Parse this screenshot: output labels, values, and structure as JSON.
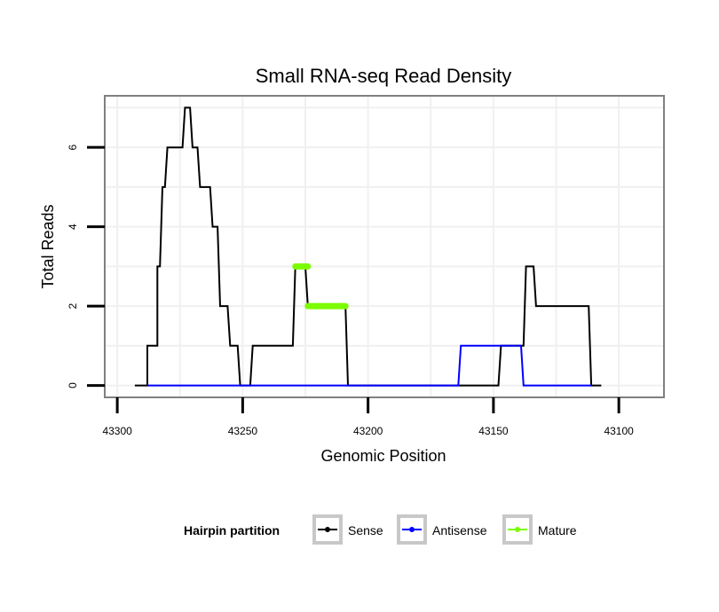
{
  "chart_data": {
    "type": "line",
    "title": "Small RNA-seq Read Density",
    "xlabel": "Genomic Position",
    "ylabel": "Total Reads",
    "xlim": [
      43305,
      43082
    ],
    "ylim": [
      -0.3,
      7.3
    ],
    "x_reversed": true,
    "grid": true,
    "x_ticks": [
      43300,
      43250,
      43200,
      43150,
      43100
    ],
    "y_ticks": [
      0,
      2,
      4,
      6
    ],
    "legend_title": "Hairpin partition",
    "legend_position": "bottom",
    "series": [
      {
        "name": "Sense",
        "color": "#000000",
        "points": [
          [
            43293,
            0
          ],
          [
            43288,
            0
          ],
          [
            43288,
            1
          ],
          [
            43284,
            1
          ],
          [
            43284,
            3
          ],
          [
            43283,
            3
          ],
          [
            43282,
            5
          ],
          [
            43281,
            5
          ],
          [
            43280,
            6
          ],
          [
            43275,
            6
          ],
          [
            43274,
            6
          ],
          [
            43273,
            7
          ],
          [
            43271,
            7
          ],
          [
            43270,
            6
          ],
          [
            43268,
            6
          ],
          [
            43267,
            5
          ],
          [
            43263,
            5
          ],
          [
            43262,
            4
          ],
          [
            43260,
            4
          ],
          [
            43259,
            2
          ],
          [
            43256,
            2
          ],
          [
            43255,
            1
          ],
          [
            43252,
            1
          ],
          [
            43251,
            0
          ],
          [
            43247,
            0
          ],
          [
            43246,
            1
          ],
          [
            43230,
            1
          ],
          [
            43229,
            3
          ],
          [
            43225,
            3
          ],
          [
            43224,
            2
          ],
          [
            43209,
            2
          ],
          [
            43208,
            0
          ],
          [
            43148,
            0
          ],
          [
            43147,
            1
          ],
          [
            43138,
            1
          ],
          [
            43137,
            3
          ],
          [
            43134,
            3
          ],
          [
            43133,
            2
          ],
          [
            43112,
            2
          ],
          [
            43111,
            0
          ],
          [
            43107,
            0
          ]
        ]
      },
      {
        "name": "Antisense",
        "color": "#0000ff",
        "points": [
          [
            43288,
            0
          ],
          [
            43164,
            0
          ],
          [
            43163,
            1
          ],
          [
            43139,
            1
          ],
          [
            43138,
            0
          ],
          [
            43111,
            0
          ]
        ]
      },
      {
        "name": "Mature",
        "color": "#7cfc00",
        "segments": [
          [
            [
              43229,
              3
            ],
            [
              43224,
              3
            ]
          ],
          [
            [
              43224,
              2
            ],
            [
              43209,
              2
            ]
          ]
        ]
      }
    ]
  }
}
